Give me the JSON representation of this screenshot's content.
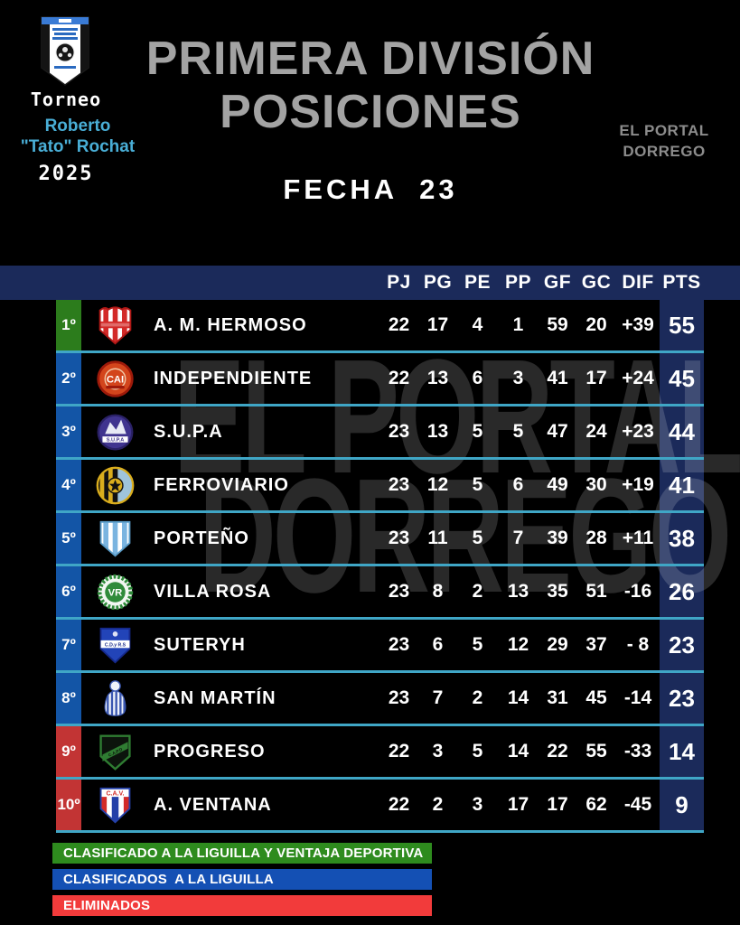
{
  "header": {
    "tournament_label": "Torneo",
    "organizer_line1": "Roberto",
    "organizer_line2": "\"Tato\" Rochat",
    "year": "2025",
    "title_line1": "PRIMERA DIVISIÓN",
    "title_line2": "POSICIONES",
    "brand_line1": "EL PORTAL",
    "brand_line2": "DORREGO",
    "matchday": "FECHA  23"
  },
  "watermark": {
    "line1": "EL PORTAL",
    "line2": "DORREGO"
  },
  "chart_data": {
    "type": "table",
    "title": "PRIMERA DIVISIÓN POSICIONES",
    "subtitle": "FECHA 23",
    "columns": [
      "PJ",
      "PG",
      "PE",
      "PP",
      "GF",
      "GC",
      "DIF",
      "PTS"
    ],
    "rows": [
      {
        "position": "1º",
        "team": "A. M. HERMOSO",
        "zone": "green",
        "badge": "hermoso",
        "values": [
          "22",
          "17",
          "4",
          "1",
          "59",
          "20",
          "+39",
          "55"
        ]
      },
      {
        "position": "2º",
        "team": "INDEPENDIENTE",
        "zone": "blue",
        "badge": "independiente",
        "values": [
          "22",
          "13",
          "6",
          "3",
          "41",
          "17",
          "+24",
          "45"
        ]
      },
      {
        "position": "3º",
        "team": "S.U.P.A",
        "zone": "blue",
        "badge": "supa",
        "values": [
          "23",
          "13",
          "5",
          "5",
          "47",
          "24",
          "+23",
          "44"
        ]
      },
      {
        "position": "4º",
        "team": "FERROVIARIO",
        "zone": "blue",
        "badge": "ferroviario",
        "values": [
          "23",
          "12",
          "5",
          "6",
          "49",
          "30",
          "+19",
          "41"
        ]
      },
      {
        "position": "5º",
        "team": "PORTEÑO",
        "zone": "blue",
        "badge": "porteno",
        "values": [
          "23",
          "11",
          "5",
          "7",
          "39",
          "28",
          "+11",
          "38"
        ]
      },
      {
        "position": "6º",
        "team": "VILLA ROSA",
        "zone": "blue",
        "badge": "villarosa",
        "values": [
          "23",
          "8",
          "2",
          "13",
          "35",
          "51",
          "-16",
          "26"
        ]
      },
      {
        "position": "7º",
        "team": "SUTERYH",
        "zone": "blue",
        "badge": "suteryh",
        "values": [
          "23",
          "6",
          "5",
          "12",
          "29",
          "37",
          "- 8",
          "23"
        ]
      },
      {
        "position": "8º",
        "team": "SAN MARTÍN",
        "zone": "blue",
        "badge": "sanmartin",
        "values": [
          "23",
          "7",
          "2",
          "14",
          "31",
          "45",
          "-14",
          "23"
        ]
      },
      {
        "position": "9º",
        "team": "PROGRESO",
        "zone": "red",
        "badge": "progreso",
        "values": [
          "22",
          "3",
          "5",
          "14",
          "22",
          "55",
          "-33",
          "14"
        ]
      },
      {
        "position": "10º",
        "team": "A. VENTANA",
        "zone": "red",
        "badge": "ventana",
        "values": [
          "22",
          "2",
          "3",
          "17",
          "17",
          "62",
          "-45",
          "9"
        ]
      }
    ]
  },
  "legend": [
    {
      "label": "CLASIFICADO A LA LIGUILLA Y VENTAJA DEPORTIVA",
      "color": "#2e8b1e"
    },
    {
      "label": "CLASIFICADOS  A LA LIGUILLA",
      "color": "#1450b4"
    },
    {
      "label": "ELIMINADOS",
      "color": "#f23b3b"
    }
  ],
  "colors": {
    "header_navy": "#1b2a5a",
    "separator_cyan": "#3fa6c6",
    "zone_green": "#2c7c1c",
    "zone_blue": "#1355a6",
    "zone_red": "#c23434",
    "title_gray": "#a3a3a3",
    "brand_gray": "#8c8c8c",
    "organizer_cyan": "#49aed6"
  }
}
